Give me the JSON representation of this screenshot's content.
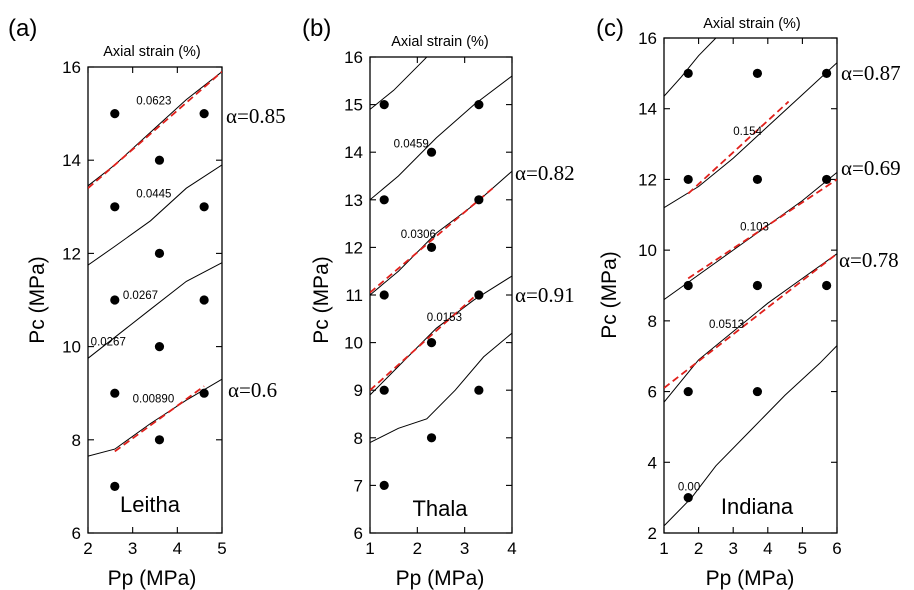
{
  "chart_data": [
    {
      "type": "scatter",
      "panel_label": "(a)",
      "top_label": "Axial strain (%)",
      "rock_label": "Leitha",
      "xlabel": "Pp (MPa)",
      "ylabel": "Pc (MPa)",
      "xlim": [
        2,
        5
      ],
      "ylim": [
        6,
        16
      ],
      "xticks": [
        2,
        3,
        4,
        5
      ],
      "yticks": [
        6,
        8,
        10,
        12,
        14,
        16
      ],
      "points": [
        {
          "x": 2.6,
          "y": 15
        },
        {
          "x": 4.6,
          "y": 15
        },
        {
          "x": 3.6,
          "y": 14
        },
        {
          "x": 2.6,
          "y": 13
        },
        {
          "x": 4.6,
          "y": 13
        },
        {
          "x": 3.6,
          "y": 12
        },
        {
          "x": 2.6,
          "y": 11
        },
        {
          "x": 4.6,
          "y": 11
        },
        {
          "x": 3.6,
          "y": 10
        },
        {
          "x": 2.6,
          "y": 9
        },
        {
          "x": 4.6,
          "y": 9
        },
        {
          "x": 3.6,
          "y": 8
        },
        {
          "x": 2.6,
          "y": 7
        }
      ],
      "contours": [
        {
          "label": "0.0623",
          "points": [
            [
              2.0,
              13.45
            ],
            [
              2.6,
              13.9
            ],
            [
              3.4,
              14.6
            ],
            [
              4.2,
              15.3
            ],
            [
              5.0,
              15.9
            ]
          ]
        },
        {
          "label": "0.0445",
          "points": [
            [
              2.0,
              11.75
            ],
            [
              2.6,
              12.15
            ],
            [
              3.4,
              12.7
            ],
            [
              4.2,
              13.4
            ],
            [
              5.0,
              13.9
            ]
          ]
        },
        {
          "label": "0.0267",
          "points": [
            [
              2.0,
              9.75
            ],
            [
              2.6,
              10.2
            ],
            [
              3.4,
              10.8
            ],
            [
              4.2,
              11.4
            ],
            [
              5.0,
              11.8
            ]
          ]
        },
        {
          "label": "0.00890",
          "points": [
            [
              2.0,
              7.65
            ],
            [
              2.6,
              7.8
            ],
            [
              3.4,
              8.35
            ],
            [
              4.2,
              8.85
            ],
            [
              5.0,
              9.3
            ]
          ]
        }
      ],
      "contour_labels": [
        {
          "text": "0.0623",
          "x": 3.08,
          "y": 15.2
        },
        {
          "text": "0.0445",
          "x": 3.08,
          "y": 13.2
        },
        {
          "text": "0.0267",
          "x": 2.78,
          "y": 11.02
        },
        {
          "text": "0.0267",
          "x": 2.06,
          "y": 10.02
        },
        {
          "text": "0.00890",
          "x": 3.0,
          "y": 8.8
        }
      ],
      "fits": [
        {
          "alpha_label": "α=0.85",
          "points": [
            [
              2.0,
              13.4
            ],
            [
              5.0,
              15.9
            ]
          ]
        },
        {
          "alpha_label": "α=0.6",
          "points": [
            [
              2.6,
              7.75
            ],
            [
              4.6,
              9.15
            ]
          ]
        }
      ]
    },
    {
      "type": "scatter",
      "panel_label": "(b)",
      "top_label": "Axial strain (%)",
      "rock_label": "Thala",
      "xlabel": "Pp (MPa)",
      "ylabel": "Pc (MPa)",
      "xlim": [
        1,
        4
      ],
      "ylim": [
        6,
        16
      ],
      "xticks": [
        1,
        2,
        3,
        4
      ],
      "yticks": [
        6,
        7,
        8,
        9,
        10,
        11,
        12,
        13,
        14,
        15,
        16
      ],
      "points": [
        {
          "x": 1.3,
          "y": 15
        },
        {
          "x": 3.3,
          "y": 15
        },
        {
          "x": 2.3,
          "y": 14
        },
        {
          "x": 1.3,
          "y": 13
        },
        {
          "x": 3.3,
          "y": 13
        },
        {
          "x": 2.3,
          "y": 12
        },
        {
          "x": 1.3,
          "y": 11
        },
        {
          "x": 3.3,
          "y": 11
        },
        {
          "x": 2.3,
          "y": 10
        },
        {
          "x": 1.3,
          "y": 9
        },
        {
          "x": 3.3,
          "y": 9
        },
        {
          "x": 2.3,
          "y": 8
        },
        {
          "x": 1.3,
          "y": 7
        }
      ],
      "contours": [
        {
          "label": "",
          "points": [
            [
              1.0,
              14.9
            ],
            [
              1.5,
              15.3
            ],
            [
              2.1,
              15.9
            ],
            [
              2.2,
              16.0
            ]
          ]
        },
        {
          "label": "0.0459",
          "points": [
            [
              1.0,
              13.0
            ],
            [
              1.6,
              13.5
            ],
            [
              2.4,
              14.3
            ],
            [
              3.2,
              15.0
            ],
            [
              4.0,
              15.6
            ]
          ]
        },
        {
          "label": "0.0306",
          "points": [
            [
              1.0,
              11.0
            ],
            [
              1.6,
              11.5
            ],
            [
              2.4,
              12.3
            ],
            [
              3.2,
              12.9
            ],
            [
              4.0,
              13.6
            ]
          ]
        },
        {
          "label": "0.0153",
          "points": [
            [
              1.0,
              8.9
            ],
            [
              1.6,
              9.5
            ],
            [
              2.4,
              10.3
            ],
            [
              3.2,
              10.9
            ],
            [
              4.0,
              11.4
            ]
          ]
        },
        {
          "label": "",
          "points": [
            [
              1.0,
              7.9
            ],
            [
              1.6,
              8.2
            ],
            [
              2.2,
              8.4
            ],
            [
              2.8,
              9.0
            ],
            [
              3.4,
              9.7
            ],
            [
              4.0,
              10.2
            ]
          ]
        }
      ],
      "contour_labels": [
        {
          "text": "0.0459",
          "x": 1.5,
          "y": 14.1
        },
        {
          "text": "0.0306",
          "x": 1.65,
          "y": 12.2
        },
        {
          "text": "0.0153",
          "x": 2.2,
          "y": 10.45
        }
      ],
      "fits": [
        {
          "alpha_label": "α=0.82",
          "points": [
            [
              1.0,
              11.05
            ],
            [
              3.6,
              13.25
            ]
          ]
        },
        {
          "alpha_label": "α=0.91",
          "points": [
            [
              1.0,
              9.0
            ],
            [
              3.3,
              11.05
            ]
          ]
        }
      ]
    },
    {
      "type": "scatter",
      "panel_label": "(c)",
      "top_label": "Axial strain (%)",
      "rock_label": "Indiana",
      "xlabel": "Pp (MPa)",
      "ylabel": "Pc (MPa)",
      "xlim": [
        1,
        6
      ],
      "ylim": [
        2,
        16
      ],
      "xticks": [
        1,
        2,
        3,
        4,
        5,
        6
      ],
      "yticks": [
        2,
        4,
        6,
        8,
        10,
        12,
        14,
        16
      ],
      "points": [
        {
          "x": 1.7,
          "y": 15
        },
        {
          "x": 3.7,
          "y": 15
        },
        {
          "x": 5.7,
          "y": 15
        },
        {
          "x": 1.7,
          "y": 12
        },
        {
          "x": 3.7,
          "y": 12
        },
        {
          "x": 5.7,
          "y": 12
        },
        {
          "x": 1.7,
          "y": 9
        },
        {
          "x": 3.7,
          "y": 9
        },
        {
          "x": 5.7,
          "y": 9
        },
        {
          "x": 1.7,
          "y": 6
        },
        {
          "x": 3.7,
          "y": 6
        },
        {
          "x": 1.7,
          "y": 3
        }
      ],
      "contours": [
        {
          "label": "",
          "points": [
            [
              1.0,
              14.35
            ],
            [
              1.5,
              14.9
            ],
            [
              2.0,
              15.5
            ],
            [
              2.5,
              16.0
            ]
          ]
        },
        {
          "label": "0.154",
          "points": [
            [
              1.0,
              11.2
            ],
            [
              2.0,
              11.8
            ],
            [
              3.0,
              12.6
            ],
            [
              4.0,
              13.5
            ],
            [
              5.0,
              14.4
            ],
            [
              6.0,
              15.3
            ]
          ]
        },
        {
          "label": "0.103",
          "points": [
            [
              1.0,
              8.6
            ],
            [
              2.0,
              9.3
            ],
            [
              3.0,
              10.0
            ],
            [
              4.0,
              10.7
            ],
            [
              5.0,
              11.4
            ],
            [
              6.0,
              12.2
            ]
          ]
        },
        {
          "label": "0.0513",
          "points": [
            [
              1.0,
              5.7
            ],
            [
              2.0,
              6.9
            ],
            [
              3.0,
              7.7
            ],
            [
              4.0,
              8.5
            ],
            [
              5.0,
              9.2
            ],
            [
              6.0,
              9.9
            ]
          ]
        },
        {
          "label": "0.00",
          "points": [
            [
              1.0,
              2.2
            ],
            [
              1.8,
              3.0
            ],
            [
              2.5,
              3.9
            ],
            [
              3.5,
              4.9
            ],
            [
              4.5,
              5.9
            ],
            [
              5.5,
              6.8
            ],
            [
              6.0,
              7.3
            ]
          ]
        }
      ],
      "contour_labels": [
        {
          "text": "0.154",
          "x": 3.0,
          "y": 13.25
        },
        {
          "text": "0.103",
          "x": 3.2,
          "y": 10.55
        },
        {
          "text": "0.0513",
          "x": 2.3,
          "y": 7.8
        },
        {
          "text": "0.00",
          "x": 1.4,
          "y": 3.2
        }
      ],
      "fits": [
        {
          "alpha_label": "α=0.87",
          "points": [
            [
              1.7,
              11.6
            ],
            [
              4.6,
              14.2
            ]
          ]
        },
        {
          "alpha_label": "α=0.69",
          "points": [
            [
              1.7,
              9.2
            ],
            [
              6.0,
              12.0
            ]
          ]
        },
        {
          "alpha_label": "α=0.78",
          "points": [
            [
              1.0,
              6.1
            ],
            [
              6.0,
              9.9
            ]
          ]
        }
      ]
    }
  ]
}
